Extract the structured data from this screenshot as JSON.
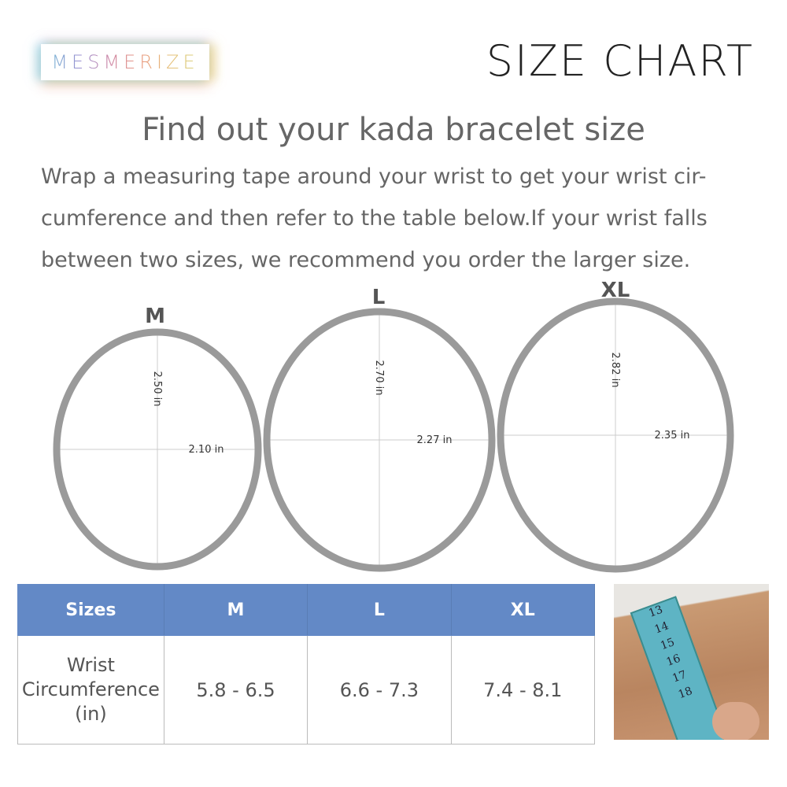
{
  "brand": {
    "logo_text": "MESMERIZE"
  },
  "header": {
    "title": "SIZE CHART"
  },
  "heading": "Find out your kada bracelet size",
  "description": "Wrap a measuring tape around your wrist to get your wrist cir-cumference and then refer to the table below.If your wrist falls between two sizes, we recommend you order the larger size.",
  "description_lines": [
    "Wrap a measuring tape around your wrist to get your wrist cir-",
    "cumference and then refer to the table below.If your wrist falls",
    "between two sizes, we recommend you order the larger size."
  ],
  "rings": [
    {
      "size": "M",
      "height": "2.50 in",
      "width": "2.10 in"
    },
    {
      "size": "L",
      "height": "2.70 in",
      "width": "2.27 in"
    },
    {
      "size": "XL",
      "height": "2.82 in",
      "width": "2.35 in"
    }
  ],
  "table": {
    "headers": [
      "Sizes",
      "M",
      "L",
      "XL"
    ],
    "row_label_lines": [
      "Wrist",
      "Circumference",
      "(in)"
    ],
    "values": [
      "5.8 - 6.5",
      "6.6 - 7.3",
      "7.4 - 8.1"
    ]
  },
  "photo": {
    "tape_numbers": [
      "13",
      "14",
      "15",
      "16",
      "17",
      "18"
    ]
  },
  "colors": {
    "table_header": "#6389c6",
    "ring": "#9a9a9a"
  }
}
